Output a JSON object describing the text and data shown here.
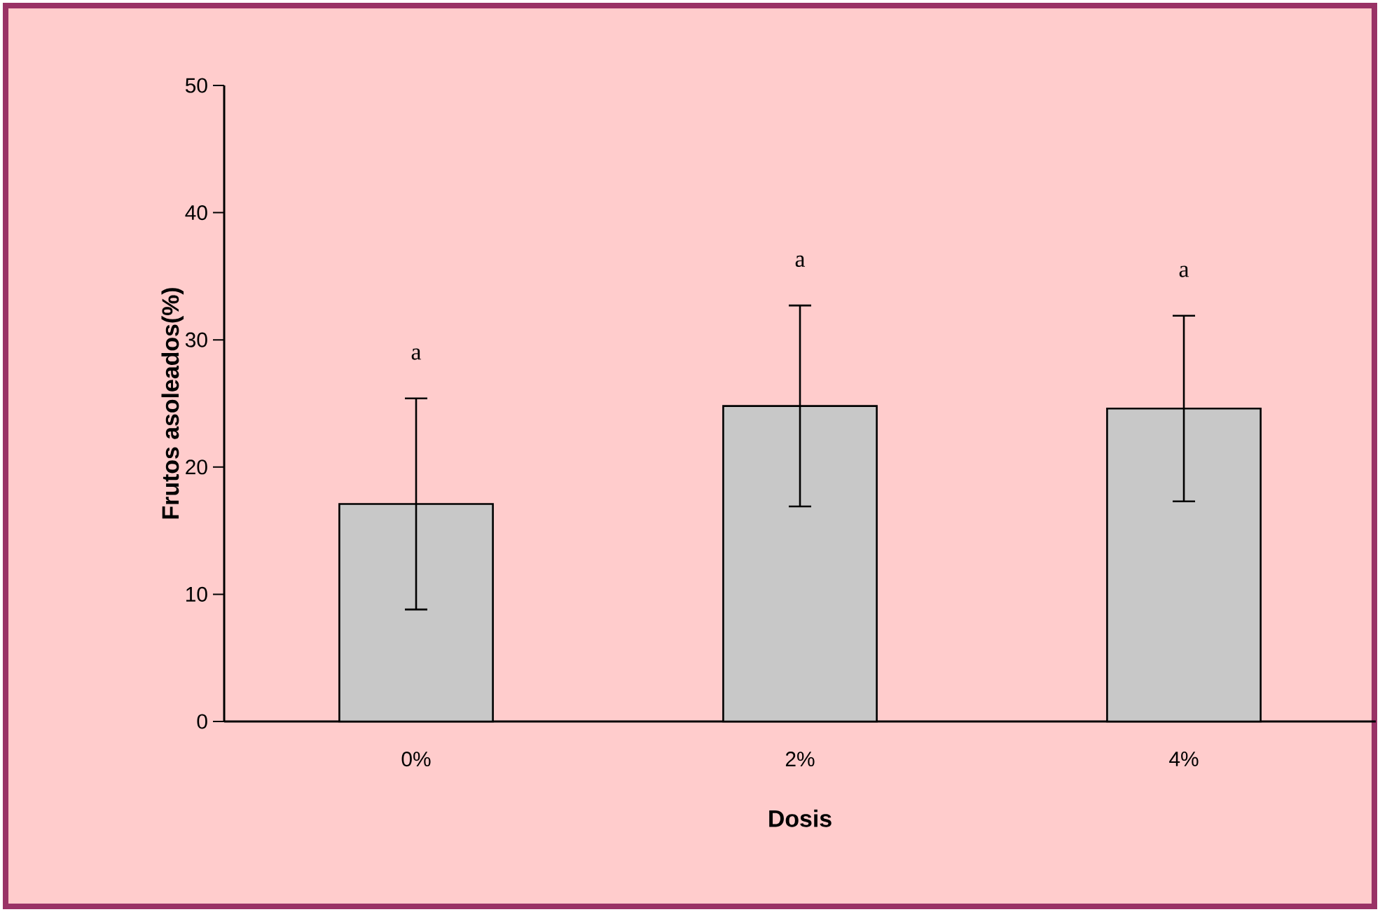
{
  "chart_data": {
    "type": "bar",
    "xlabel": "Dosis",
    "ylabel": "Frutos asoleados(%)",
    "categories": [
      "0%",
      "2%",
      "4%"
    ],
    "values": [
      17.1,
      24.8,
      24.6
    ],
    "errors": [
      8.3,
      7.9,
      7.3
    ],
    "color": "#c8c8c8",
    "ylim": [
      0,
      50
    ],
    "yticks": [
      0,
      10,
      20,
      30,
      40,
      50
    ],
    "annotations": [
      "a",
      "a",
      "a"
    ]
  }
}
